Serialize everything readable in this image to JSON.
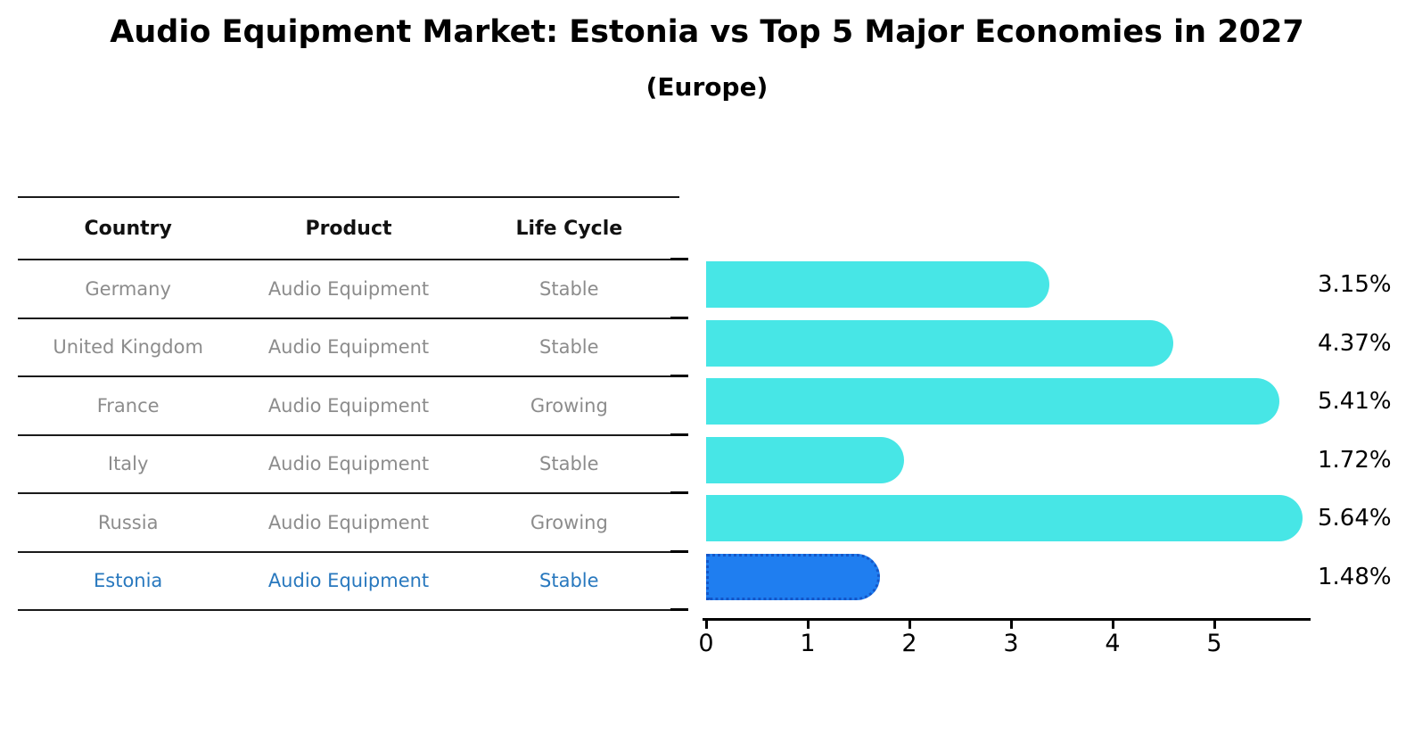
{
  "title": "Audio Equipment Market: Estonia vs Top 5 Major Economies in 2027",
  "subtitle": "(Europe)",
  "table": {
    "headers": [
      "Country",
      "Product",
      "Life Cycle"
    ],
    "rows": [
      {
        "country": "Germany",
        "product": "Audio Equipment",
        "life_cycle": "Stable"
      },
      {
        "country": "United Kingdom",
        "product": "Audio Equipment",
        "life_cycle": "Stable"
      },
      {
        "country": "France",
        "product": "Audio Equipment",
        "life_cycle": "Growing"
      },
      {
        "country": "Italy",
        "product": "Audio Equipment",
        "life_cycle": "Stable"
      },
      {
        "country": "Russia",
        "product": "Audio Equipment",
        "life_cycle": "Growing"
      },
      {
        "country": "Estonia",
        "product": "Audio Equipment",
        "life_cycle": "Stable"
      }
    ]
  },
  "chart_data": {
    "type": "bar",
    "orientation": "horizontal",
    "categories": [
      "Germany",
      "United Kingdom",
      "France",
      "Italy",
      "Russia",
      "Estonia"
    ],
    "values": [
      3.15,
      4.37,
      5.41,
      1.72,
      5.64,
      1.48
    ],
    "labels": [
      "3.15%",
      "4.37%",
      "5.41%",
      "1.72%",
      "5.64%",
      "1.48%"
    ],
    "x_ticks": [
      0,
      1,
      2,
      3,
      4,
      5
    ],
    "xlim": [
      0,
      5.95
    ],
    "grid": false,
    "legend": "none",
    "highlight_index": 5,
    "ylabel": "",
    "xlabel": ""
  },
  "colors": {
    "bar": "#47e6e6",
    "highlight_bar": "#1f7ef0",
    "highlight_bar_border": "#1456c8",
    "highlight_text": "#2878be",
    "row_text": "#8c8c8c",
    "header_text": "#111111",
    "axis": "#000000"
  }
}
